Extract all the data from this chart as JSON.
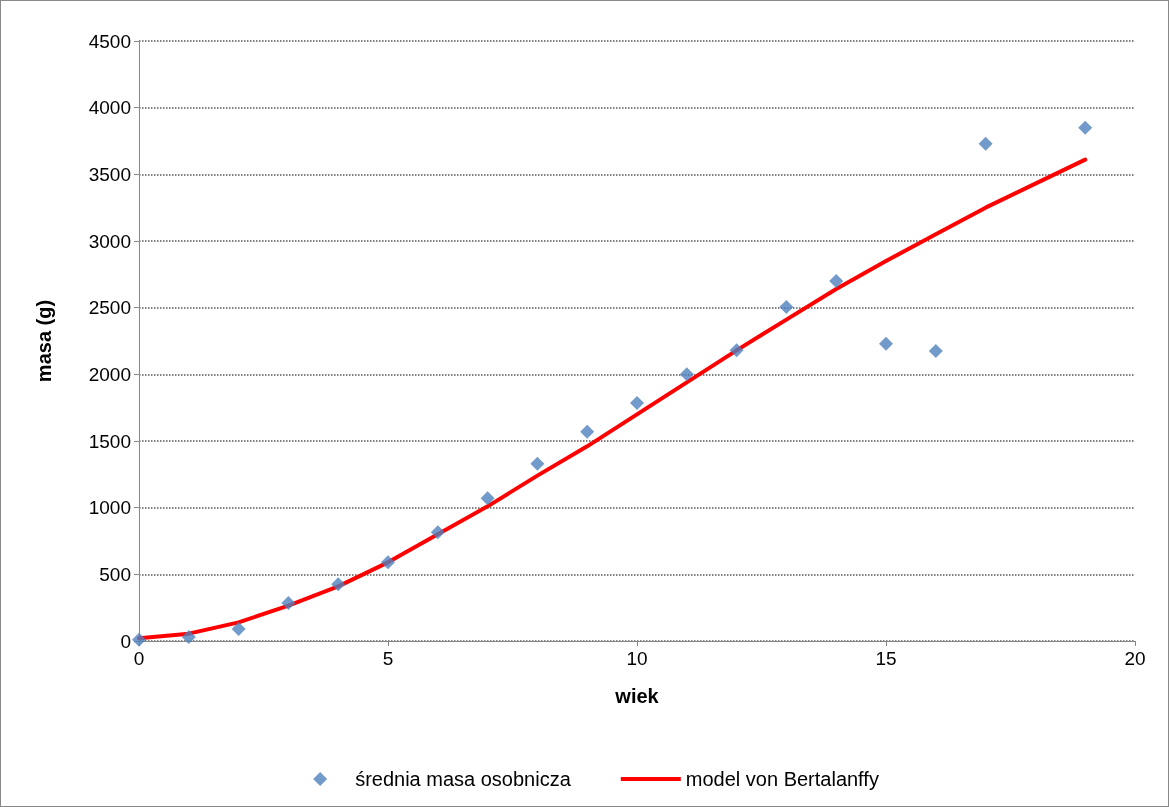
{
  "chart_data": {
    "type": "scatter",
    "xlabel": "wiek",
    "ylabel": "masa (g)",
    "xlim": [
      0,
      20
    ],
    "xticks": [
      0,
      5,
      10,
      15,
      20
    ],
    "ylim": [
      0,
      4500
    ],
    "yticks": [
      0,
      500,
      1000,
      1500,
      2000,
      2500,
      3000,
      3500,
      4000,
      4500
    ],
    "grid": "y",
    "legend": "bottom",
    "series": [
      {
        "name": "średnia masa osobnicza",
        "color": "#4f81bd",
        "marker": "diamond",
        "x": [
          0,
          1,
          2,
          3,
          4,
          5,
          6,
          7,
          8,
          9,
          10,
          11,
          12,
          13,
          14,
          15,
          16,
          17,
          19
        ],
        "values": [
          10,
          30,
          90,
          285,
          425,
          590,
          815,
          1070,
          1330,
          1570,
          1785,
          2000,
          2180,
          2505,
          2700,
          2230,
          2175,
          3730,
          3850
        ]
      },
      {
        "name": "model von Bertalanffy",
        "type": "line",
        "color": "#ff0000",
        "marker": "none",
        "line_style": "solid",
        "x": [
          0,
          1,
          2,
          3,
          4,
          5,
          6,
          7,
          8,
          9,
          10,
          11,
          12,
          13,
          14,
          15,
          16,
          17,
          18,
          19
        ],
        "values": [
          20,
          55,
          140,
          265,
          410,
          590,
          800,
          1010,
          1240,
          1460,
          1700,
          1940,
          2180,
          2410,
          2640,
          2850,
          3050,
          3250,
          3430,
          3610
        ]
      }
    ]
  }
}
